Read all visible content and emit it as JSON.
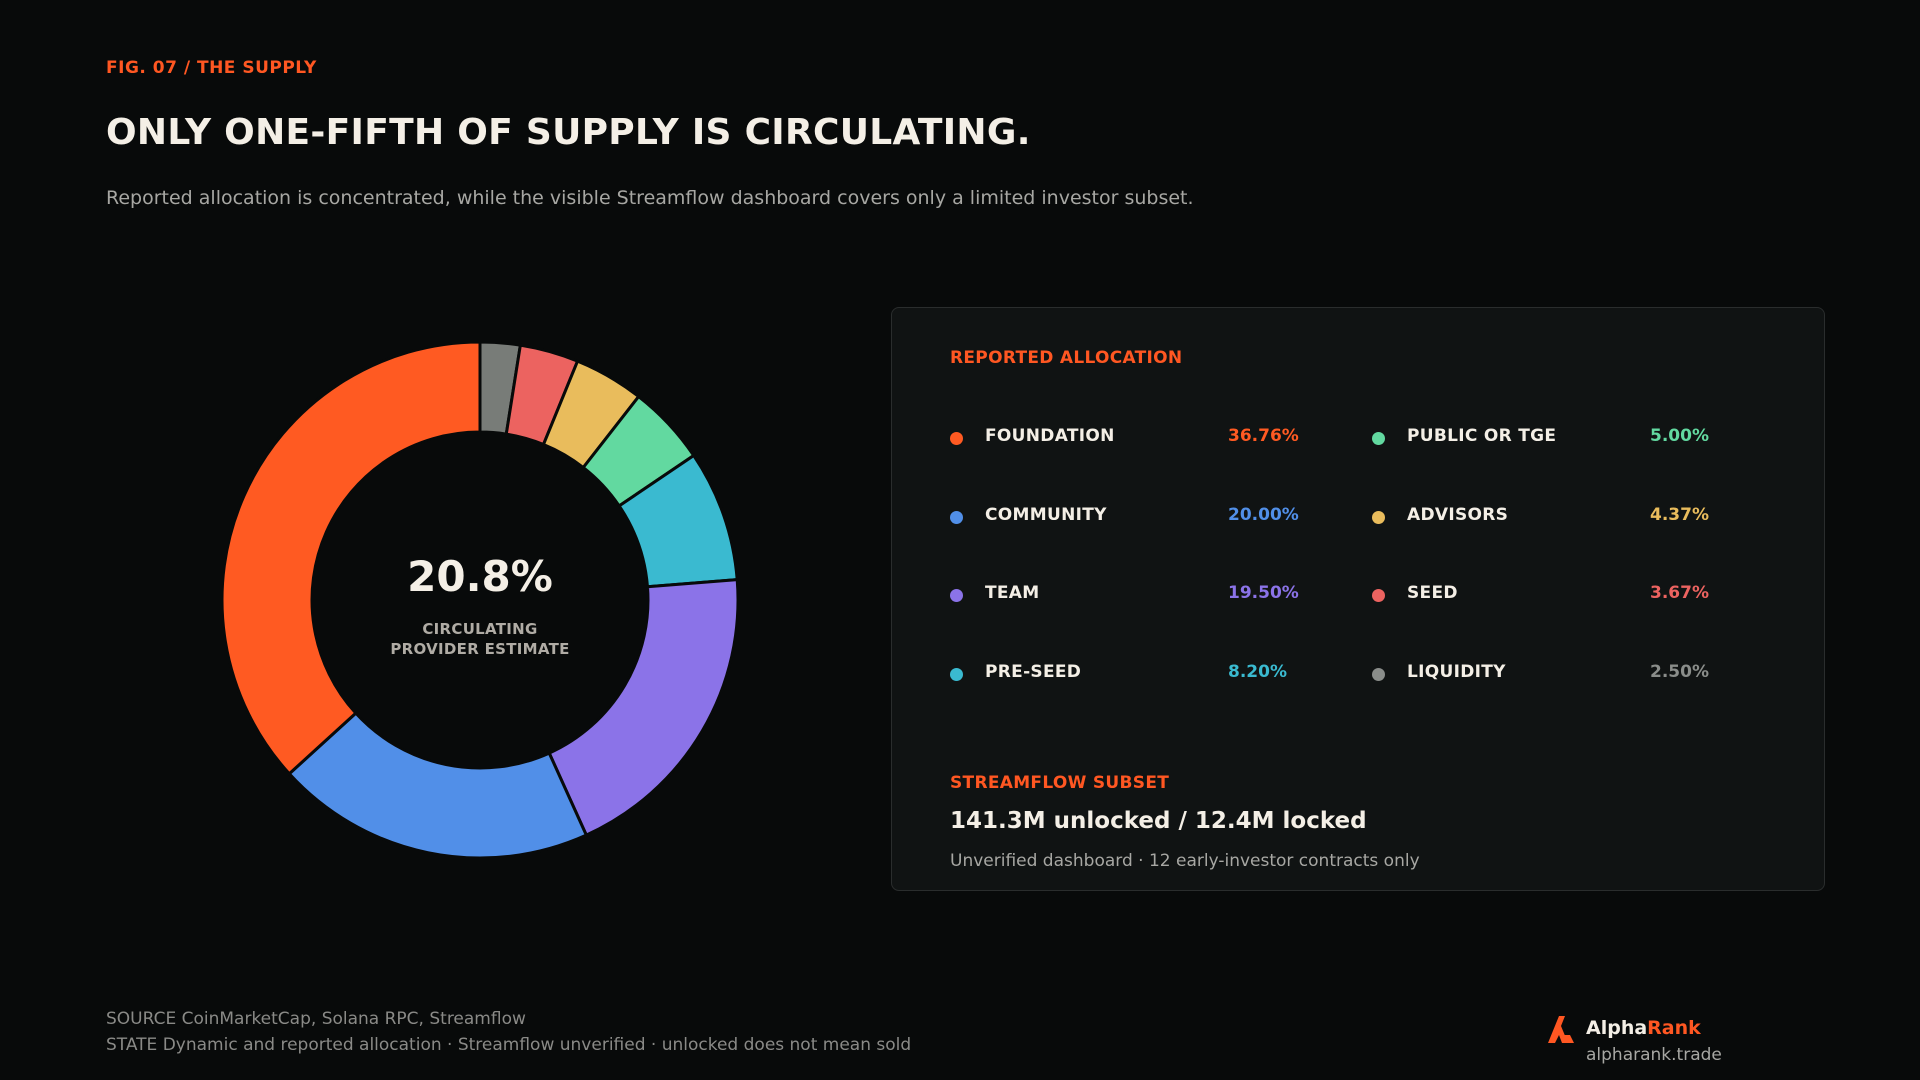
{
  "header": {
    "fig_label": "FIG. 07 / THE SUPPLY",
    "title": "ONLY ONE-FIFTH OF SUPPLY IS CIRCULATING.",
    "subtitle": "Reported allocation is concentrated, while the visible Streamflow dashboard covers only a limited investor subset."
  },
  "center": {
    "value": "20.8%",
    "label_line1": "CIRCULATING",
    "label_line2": "PROVIDER ESTIMATE"
  },
  "chart_data": {
    "type": "pie",
    "subtype": "donut",
    "title": "REPORTED ALLOCATION",
    "start_angle_deg": 0,
    "direction": "clockwise",
    "slices": [
      {
        "label": "LIQUIDITY",
        "value": 2.5,
        "display": "2.50%",
        "color": "#787c78"
      },
      {
        "label": "SEED",
        "value": 3.67,
        "display": "3.67%",
        "color": "#ec6360"
      },
      {
        "label": "ADVISORS",
        "value": 4.37,
        "display": "4.37%",
        "color": "#e9bc5c"
      },
      {
        "label": "PUBLIC OR TGE",
        "value": 5.0,
        "display": "5.00%",
        "color": "#62d9a0"
      },
      {
        "label": "PRE-SEED",
        "value": 8.2,
        "display": "8.20%",
        "color": "#3abad0"
      },
      {
        "label": "TEAM",
        "value": 19.5,
        "display": "19.50%",
        "color": "#8b73e8"
      },
      {
        "label": "COMMUNITY",
        "value": 20.0,
        "display": "20.00%",
        "color": "#518fe8"
      },
      {
        "label": "FOUNDATION",
        "value": 36.76,
        "display": "36.76%",
        "color": "#ff5a22"
      }
    ]
  },
  "legend": {
    "heading": "REPORTED ALLOCATION",
    "left_column": [
      {
        "label": "FOUNDATION",
        "value": "36.76%",
        "color": "#ff5a22"
      },
      {
        "label": "COMMUNITY",
        "value": "20.00%",
        "color": "#518fe8"
      },
      {
        "label": "TEAM",
        "value": "19.50%",
        "color": "#8b73e8"
      },
      {
        "label": "PRE-SEED",
        "value": "8.20%",
        "color": "#3abad0"
      }
    ],
    "right_column": [
      {
        "label": "PUBLIC OR TGE",
        "value": "5.00%",
        "color": "#62d9a0"
      },
      {
        "label": "ADVISORS",
        "value": "4.37%",
        "color": "#e9bc5c"
      },
      {
        "label": "SEED",
        "value": "3.67%",
        "color": "#ec6360"
      },
      {
        "label": "LIQUIDITY",
        "value": "2.50%",
        "color": "#8a8d8a"
      }
    ]
  },
  "streamflow": {
    "heading": "STREAMFLOW SUBSET",
    "value": "141.3M unlocked / 12.4M locked",
    "note": "Unverified dashboard · 12 early-investor contracts only"
  },
  "footer": {
    "source": "SOURCE  CoinMarketCap, Solana RPC, Streamflow",
    "state": "STATE  Dynamic and reported allocation · Streamflow unverified · unlocked does not mean sold"
  },
  "brand": {
    "name_part1": "Alpha",
    "name_part2": "Rank",
    "url": "alpharank.trade",
    "accent": "#ff5722"
  }
}
